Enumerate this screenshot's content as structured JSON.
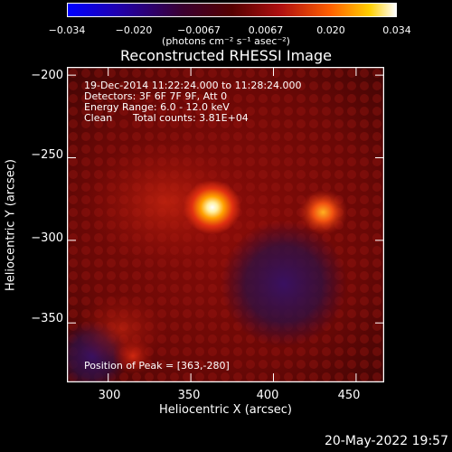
{
  "colorbar": {
    "ticks": [
      "−0.034",
      "−0.020",
      "−0.0067",
      "0.0067",
      "0.020",
      "0.034"
    ],
    "units": "(photons cm⁻² s⁻¹ asec⁻²)",
    "range": [
      -0.034,
      0.034
    ]
  },
  "chart_data": {
    "type": "heatmap",
    "title": "Reconstructed RHESSI Image",
    "xlabel": "Heliocentric X (arcsec)",
    "ylabel": "Heliocentric Y (arcsec)",
    "xlim": [
      275,
      467
    ],
    "ylim": [
      -386,
      -195
    ],
    "xticks": [
      "300",
      "350",
      "400",
      "450"
    ],
    "yticks": [
      "−200",
      "−250",
      "−300",
      "−350"
    ],
    "sources": [
      {
        "x": 363,
        "y": -280,
        "intensity": 0.034
      },
      {
        "x": 430,
        "y": -283,
        "intensity": 0.022
      },
      {
        "x": 315,
        "y": -370,
        "intensity": 0.012
      }
    ],
    "annotations": {
      "time": "19-Dec-2014 11:22:24.000 to 11:28:24.000",
      "detectors": "Detectors: 3F 6F 7F 9F, Att 0",
      "energy": "Energy Range: 6.0 - 12.0 keV",
      "clean_label": "Clean",
      "total_counts": "Total counts: 3.81E+04",
      "peak": "Position of Peak = [363,-280]"
    }
  },
  "footer": {
    "timestamp": "20-May-2022 19:57"
  },
  "colors": {
    "accent_hot": "#ffffff",
    "cold": "#0000ff"
  }
}
